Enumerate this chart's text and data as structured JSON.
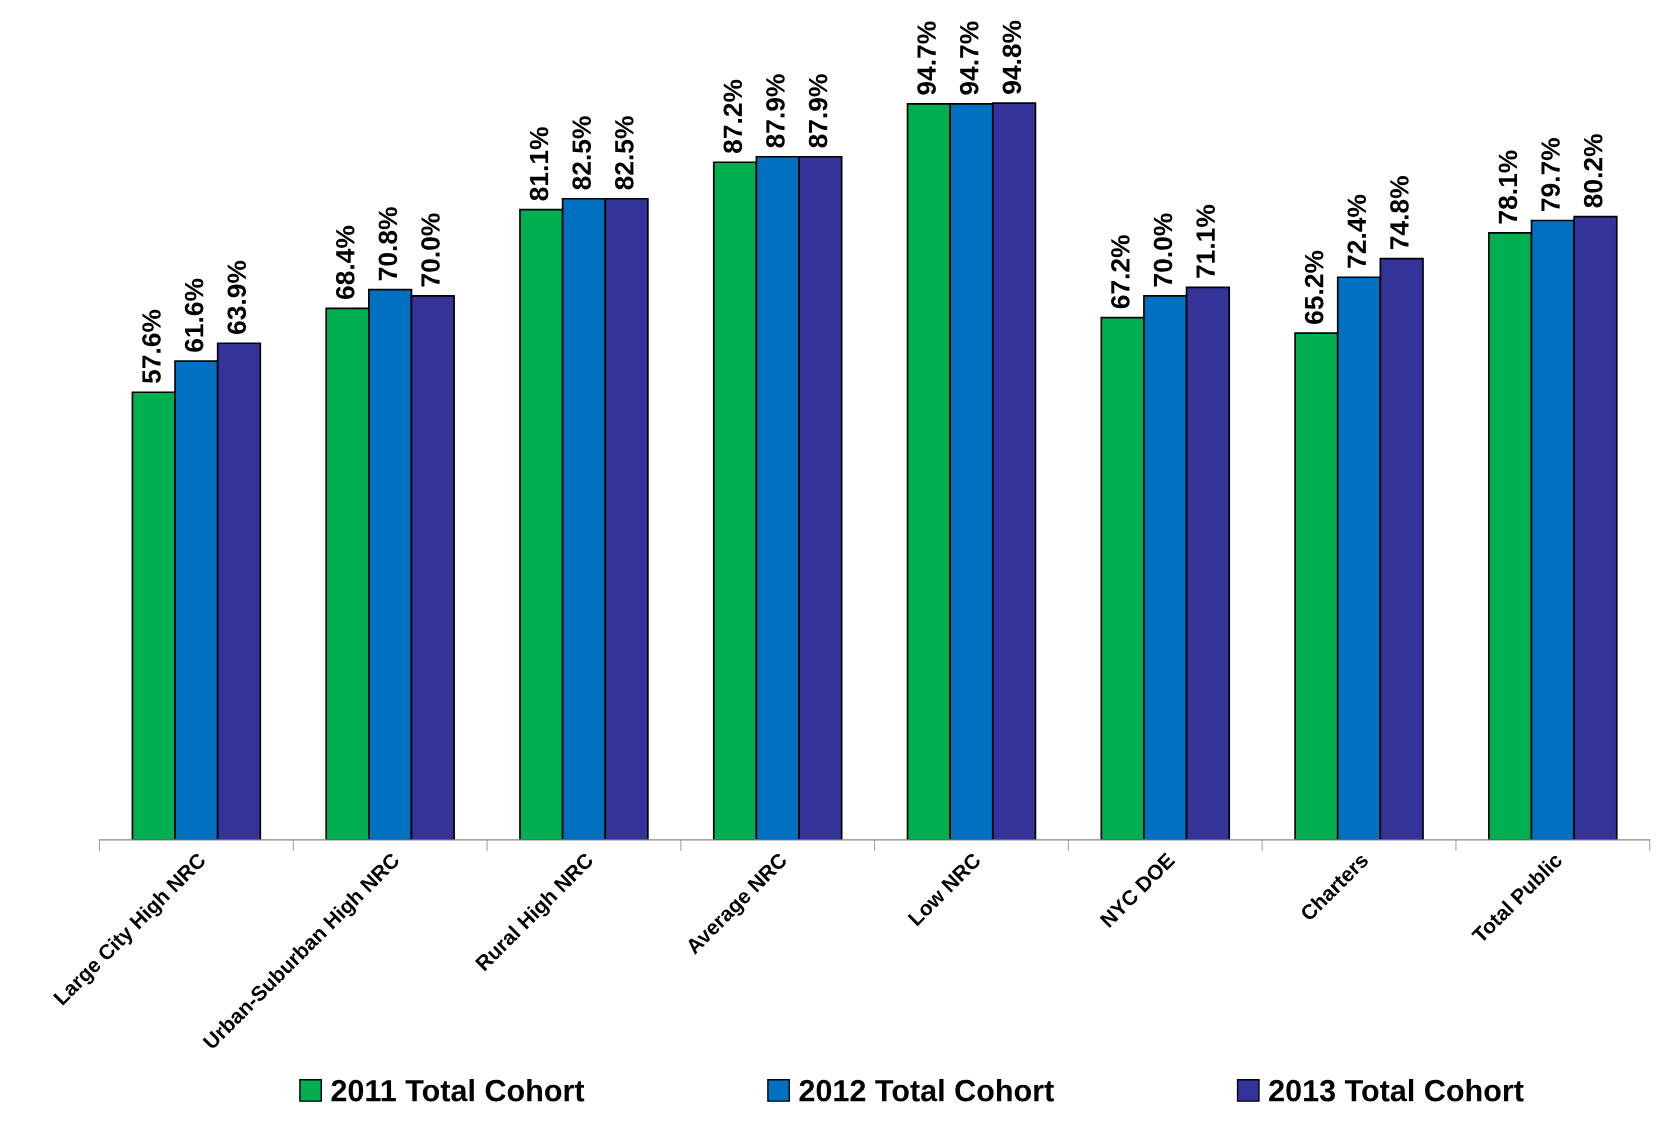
{
  "chart_data": {
    "type": "bar",
    "categories": [
      "Large City High NRC",
      "Urban-Suburban High NRC",
      "Rural High NRC",
      "Average NRC",
      "Low NRC",
      "NYC DOE",
      "Charters",
      "Total Public"
    ],
    "series": [
      {
        "name": "2011 Total Cohort",
        "color": "#00b050",
        "values": [
          57.6,
          68.4,
          81.1,
          87.2,
          94.7,
          67.2,
          65.2,
          78.1
        ],
        "value_labels": [
          "57.6%",
          "68.4%",
          "81.1%",
          "87.2%",
          "94.7%",
          "67.2%",
          "65.2%",
          "78.1%"
        ]
      },
      {
        "name": "2012 Total Cohort",
        "color": "#0070c0",
        "values": [
          61.6,
          70.8,
          82.5,
          87.9,
          94.7,
          70.0,
          72.4,
          79.7
        ],
        "value_labels": [
          "61.6%",
          "70.8%",
          "82.5%",
          "87.9%",
          "94.7%",
          "70.0%",
          "72.4%",
          "79.7%"
        ]
      },
      {
        "name": "2013 Total Cohort",
        "color": "#333399",
        "values": [
          63.9,
          70.0,
          82.5,
          87.9,
          94.8,
          71.1,
          74.8,
          80.2
        ],
        "value_labels": [
          "63.9%",
          "70.0%",
          "82.5%",
          "87.9%",
          "94.8%",
          "71.1%",
          "74.8%",
          "80.2%"
        ]
      }
    ],
    "tick_labels": "x",
    "grid": false,
    "legend": "bottom"
  }
}
